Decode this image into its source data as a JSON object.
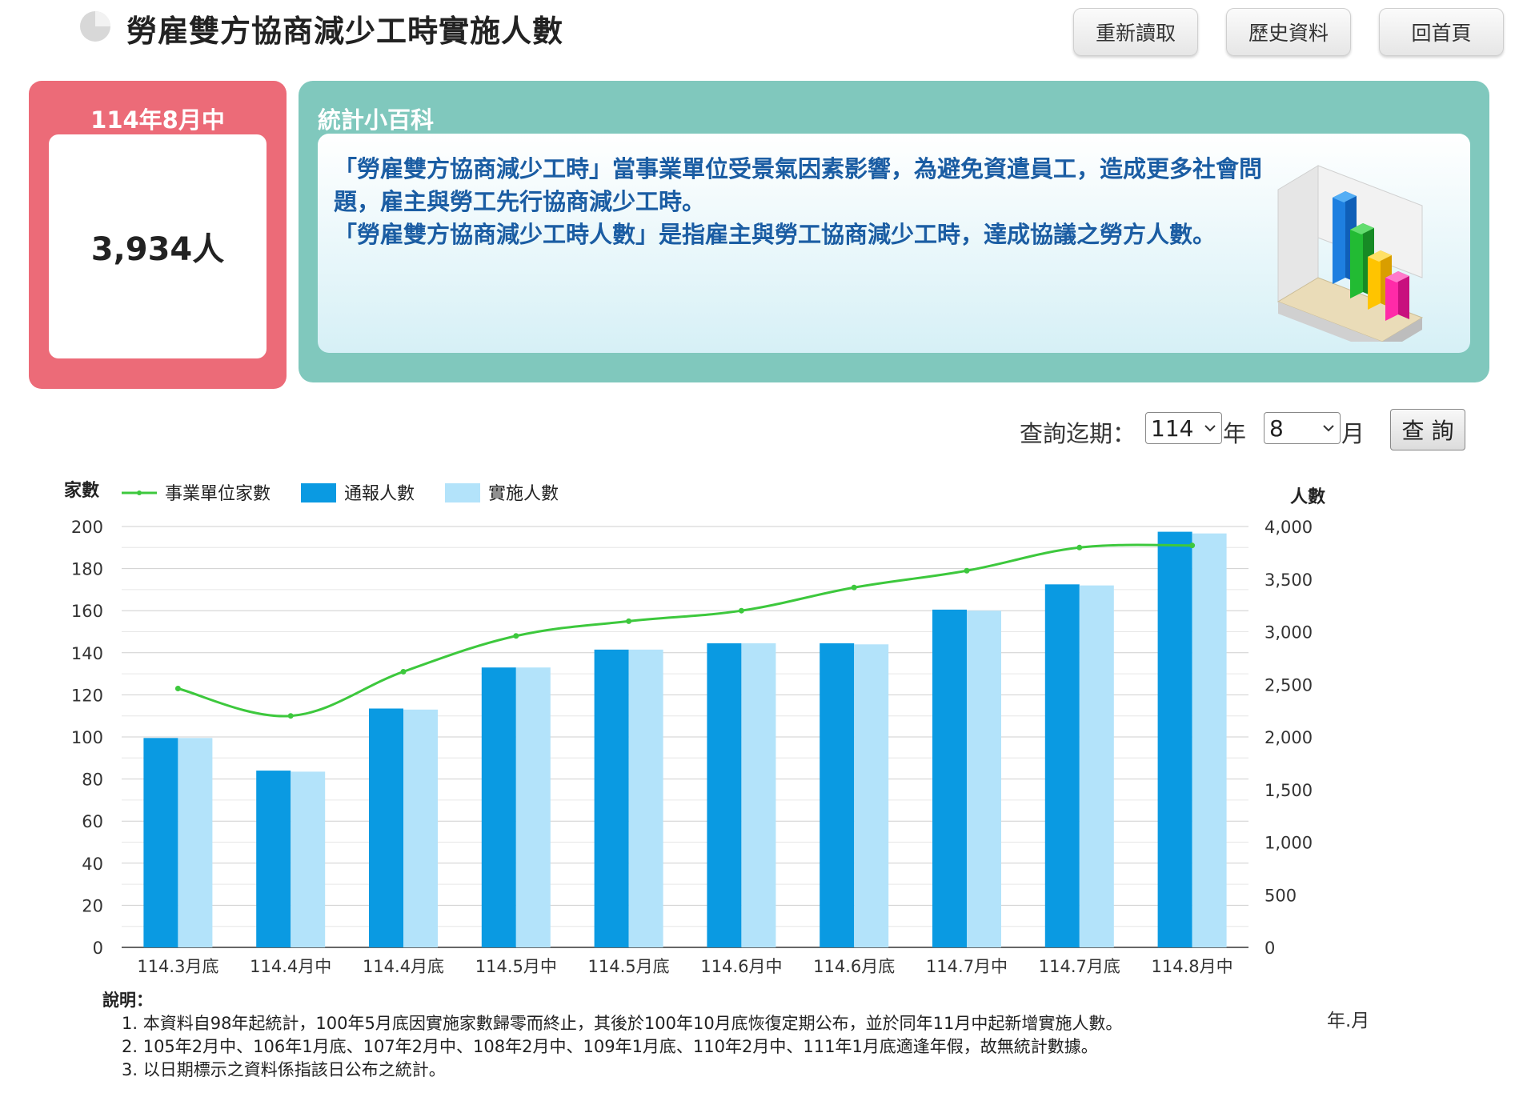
{
  "header": {
    "title": "勞雇雙方協商減少工時實施人數",
    "buttons": [
      "重新讀取",
      "歷史資料",
      "回首頁"
    ]
  },
  "summary": {
    "label": "114年8月中",
    "value": "3,934人"
  },
  "info": {
    "title": "統計小百科",
    "paragraphs": [
      "「勞雇雙方協商減少工時」當事業單位受景氣因素影響，為避免資遣員工，造成更多社會問題，雇主與勞工先行協商減少工時。",
      "「勞雇雙方協商減少工時人數」是指雇主與勞工協商減少工時，達成協議之勞方人數。"
    ]
  },
  "query": {
    "label": "查詢迄期：",
    "year_value": "114",
    "year_unit": "年",
    "month_value": "8",
    "month_unit": "月",
    "button": "查 詢"
  },
  "chart_data": {
    "type": "bar",
    "categories": [
      "114.3月底",
      "114.4月中",
      "114.4月底",
      "114.5月中",
      "114.5月底",
      "114.6月中",
      "114.6月底",
      "114.7月中",
      "114.7月底",
      "114.8月中"
    ],
    "left_axis_label": "家數",
    "right_axis_label": "人數",
    "x_unit_label": "年.月",
    "left_ylim": [
      0,
      200
    ],
    "left_ticks": [
      "0",
      "20",
      "40",
      "60",
      "80",
      "100",
      "120",
      "140",
      "160",
      "180",
      "200"
    ],
    "right_ylim": [
      0,
      4000
    ],
    "right_ticks": [
      "0",
      "500",
      "1,000",
      "1,500",
      "2,000",
      "2,500",
      "3,000",
      "3,500",
      "4,000"
    ],
    "legend_position": "top-left",
    "grid": true,
    "series": [
      {
        "name": "事業單位家數",
        "kind": "line",
        "axis": "left",
        "color": "#3dc83d",
        "values": [
          123,
          110,
          131,
          148,
          155,
          160,
          171,
          179,
          190,
          191
        ]
      },
      {
        "name": "通報人數",
        "kind": "bar",
        "axis": "right",
        "color": "#0a9ae2",
        "values": [
          1990,
          1680,
          2270,
          2660,
          2830,
          2890,
          2890,
          3210,
          3450,
          3950
        ]
      },
      {
        "name": "實施人數",
        "kind": "bar",
        "axis": "right",
        "color": "#b3e3fa",
        "values": [
          1990,
          1670,
          2260,
          2660,
          2830,
          2890,
          2880,
          3200,
          3440,
          3934
        ]
      }
    ]
  },
  "notes": {
    "heading": "說明：",
    "items": [
      "1. 本資料自98年起統計，100年5月底因實施家數歸零而終止，其後於100年10月底恢復定期公布，並於同年11月中起新增實施人數。",
      "2. 105年2月中、106年1月底、107年2月中、108年2月中、109年1月底、110年2月中、111年1月底適逢年假，故無統計數據。",
      "3. 以日期標示之資料係指該日公布之統計。"
    ]
  }
}
